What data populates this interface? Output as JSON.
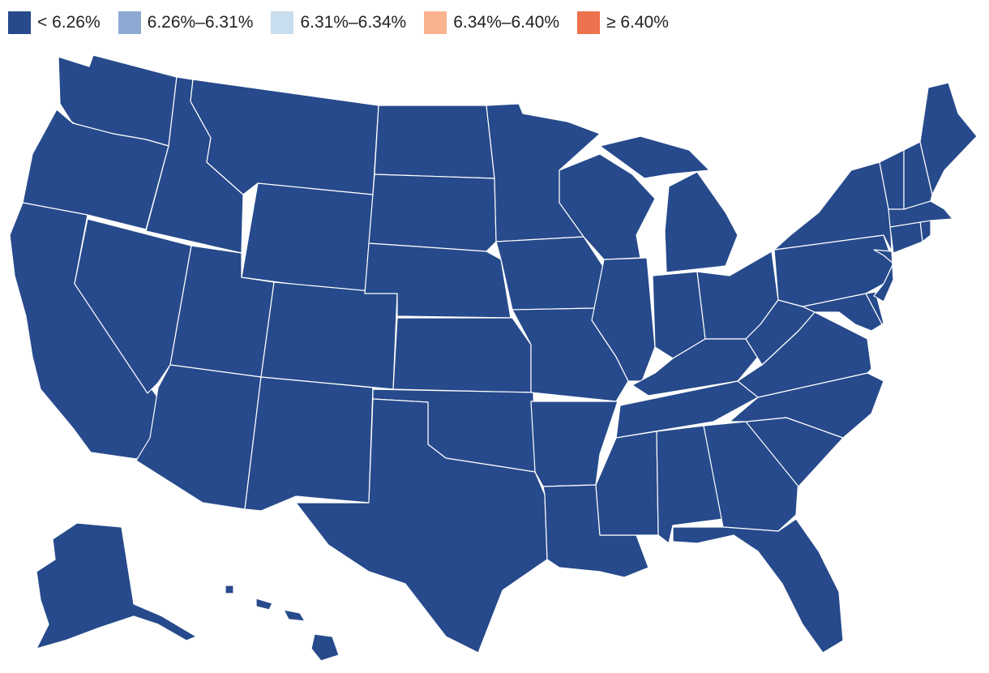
{
  "legend": {
    "bins": [
      {
        "label": "< 6.26%",
        "color": "#264a8b"
      },
      {
        "label": "6.26%–6.31%",
        "color": "#8daad3"
      },
      {
        "label": "6.31%–6.34%",
        "color": "#c8ddee"
      },
      {
        "label": "6.34%–6.40%",
        "color": "#fbb28f"
      },
      {
        "label": "≥ 6.40%",
        "color": "#ec714d"
      }
    ]
  },
  "states": {
    "WA": 0,
    "OR": 0,
    "CA": 0,
    "ID": 0,
    "MT": 0,
    "NV": 0,
    "UT": 0,
    "AZ": 0,
    "WY": 0,
    "CO": 0,
    "NM": 0,
    "ND": 0,
    "SD": 0,
    "NE": 0,
    "KS": 0,
    "OK": 0,
    "TX": 0,
    "MN": 0,
    "IA": 0,
    "MO": 0,
    "AR": 0,
    "LA": 0,
    "WI": 0,
    "IL": 0,
    "MI": 0,
    "IN": 0,
    "OH": 0,
    "KY": 0,
    "TN": 0,
    "MS": 0,
    "AL": 0,
    "GA": 0,
    "FL": 0,
    "SC": 0,
    "NC": 0,
    "VA": 0,
    "WV": 0,
    "MD": 0,
    "DE": 0,
    "PA": 0,
    "NJ": 0,
    "NY": 0,
    "CT": 0,
    "RI": 0,
    "MA": 0,
    "VT": 0,
    "NH": 0,
    "ME": 0,
    "AK": 0,
    "HI": 0
  }
}
